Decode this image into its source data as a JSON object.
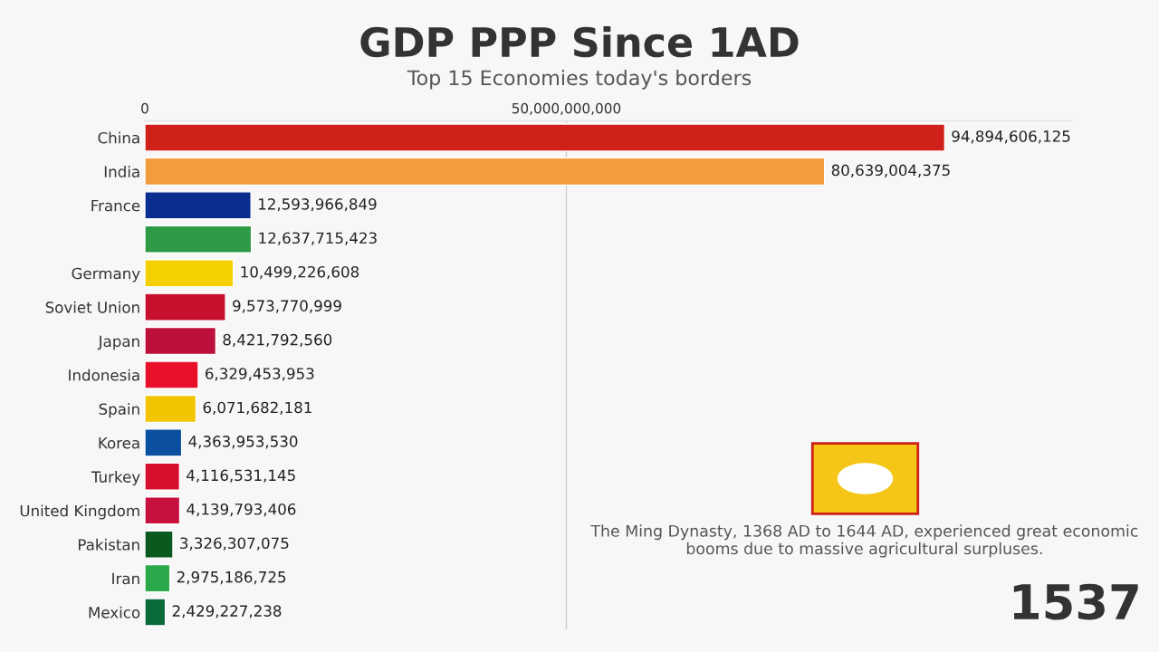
{
  "chart_data": {
    "type": "bar",
    "orientation": "horizontal",
    "title": "GDP PPP Since 1AD",
    "subtitle": "Top 15 Economies today's borders",
    "categories": [
      "China",
      "India",
      "France",
      null,
      "Germany",
      "Soviet Union",
      "Japan",
      "Indonesia",
      "Spain",
      "Korea",
      "Turkey",
      "United Kingdom",
      "Pakistan",
      "Iran",
      "Mexico"
    ],
    "values": [
      94894606125,
      80639004375,
      12593966849,
      12637715423,
      10499226608,
      9573770999,
      8421792560,
      6329453953,
      6071682181,
      4363953530,
      4116531145,
      4139793406,
      3326307075,
      2975186725,
      2429227238
    ],
    "value_labels": [
      "94,894,606,125",
      "80,639,004,375",
      "12,593,966,849",
      "12,637,715,423",
      "10,499,226,608",
      "9,573,770,999",
      "8,421,792,560",
      "6,329,453,953",
      "6,071,682,181",
      "4,363,953,530",
      "4,116,531,145",
      "4,139,793,406",
      "3,326,307,075",
      "2,975,186,725",
      "2,429,227,238"
    ],
    "colors": [
      "#d0201a",
      "#f29c3e",
      "#0b2d8f",
      "#2e9a48",
      "#f5d000",
      "#c8102e",
      "#bc0f3a",
      "#e8102b",
      "#f2c500",
      "#0b4fa0",
      "#d8102e",
      "#c8103e",
      "#0a5a20",
      "#2aa84a",
      "#0a6a3a"
    ],
    "xlim": [
      0,
      110000000000
    ],
    "xticks": [
      0,
      {
        "value": 50000000000,
        "label": "50,000,000,000"
      }
    ],
    "grid": "x",
    "annotations": [
      "The Ming Dynasty, 1368 AD to 1644 AD, experienced great economic booms due to massive agricultural surpluses.",
      "1537"
    ]
  }
}
